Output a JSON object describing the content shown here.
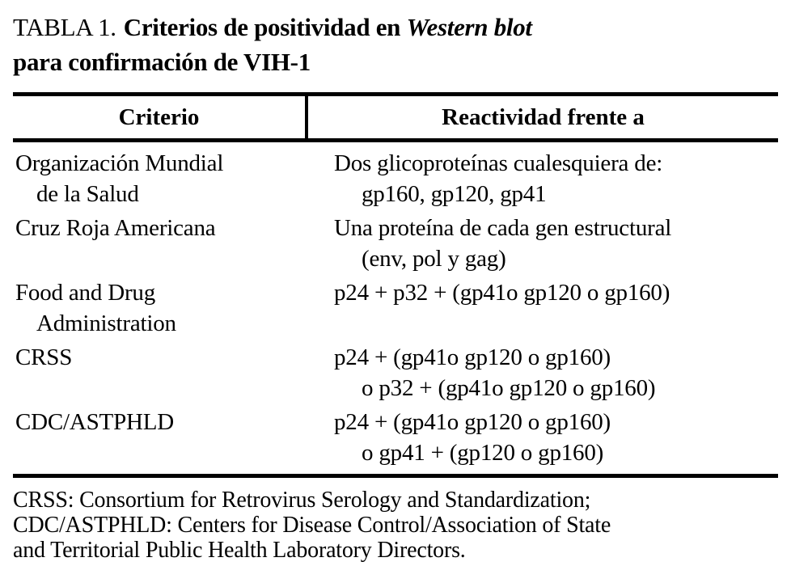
{
  "title": {
    "label": "TABLA 1.",
    "bold_text": "Criterios de positividad en",
    "italic_text": "Western blot",
    "line2": "para confirmación de VIH-1"
  },
  "table": {
    "headers": [
      "Criterio",
      "Reactividad frente a"
    ],
    "rows": [
      {
        "criterio": [
          "Organización Mundial",
          "de la Salud"
        ],
        "reactividad": [
          "Dos glicoproteínas cualesquiera de:",
          "gp160, gp120, gp41"
        ]
      },
      {
        "criterio": [
          "Cruz Roja Americana"
        ],
        "reactividad": [
          "Una proteína de cada gen estructural",
          "(env, pol y gag)"
        ]
      },
      {
        "criterio": [
          "Food and Drug",
          "Administration"
        ],
        "reactividad": [
          "p24 + p32 + (gp41o gp120 o gp160)"
        ]
      },
      {
        "criterio": [
          "CRSS"
        ],
        "reactividad": [
          "p24 + (gp41o gp120 o gp160)",
          "o p32 + (gp41o gp120 o gp160)"
        ]
      },
      {
        "criterio": [
          "CDC/ASTPHLD"
        ],
        "reactividad": [
          "p24 + (gp41o gp120 o gp160)",
          "o gp41 + (gp120 o gp160)"
        ]
      }
    ]
  },
  "footnote": {
    "lines": [
      "CRSS: Consortium for Retrovirus Serology and Standardization;",
      "CDC/ASTPHLD: Centers for Disease Control/Association of State",
      "and Territorial Public Health Laboratory Directors."
    ]
  },
  "colors": {
    "text": "#000000",
    "background": "#ffffff",
    "rule": "#000000"
  }
}
